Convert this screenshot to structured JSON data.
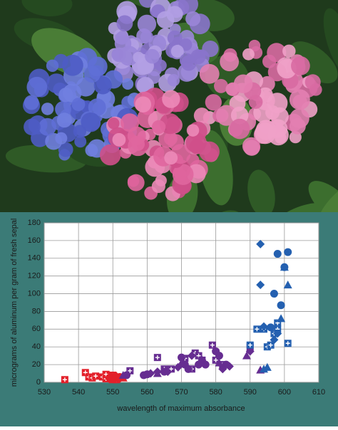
{
  "chart_data": {
    "type": "scatter",
    "x_label": "wavelength of maximum absorbance",
    "y_label": "micrograms of aluminum per gram of fresh sepal",
    "xlim": [
      530,
      610
    ],
    "xticks": [
      530,
      540,
      550,
      560,
      570,
      580,
      590,
      600,
      610
    ],
    "ylim": [
      0,
      180
    ],
    "yticks": [
      0,
      20,
      40,
      60,
      80,
      100,
      120,
      140,
      160,
      180
    ],
    "grid": true,
    "series": [
      {
        "color": "#e3202a",
        "marker": "square",
        "x": [
          536,
          542,
          543,
          544,
          545,
          547,
          548,
          548,
          550,
          551
        ],
        "values": [
          3,
          11,
          6,
          5,
          7,
          6,
          4,
          9,
          8,
          3
        ]
      },
      {
        "color": "#e3202a",
        "marker": "circle",
        "x": [
          549,
          550,
          551,
          552
        ],
        "values": [
          5,
          6,
          5,
          6
        ]
      },
      {
        "color": "#e3202a",
        "marker": "diamond",
        "x": [
          549,
          551,
          552,
          553
        ],
        "values": [
          4,
          7,
          4,
          6
        ]
      },
      {
        "color": "#e3202a",
        "marker": "triangle",
        "x": [
          550,
          553
        ],
        "values": [
          3,
          5
        ]
      },
      {
        "color": "#662d91",
        "marker": "square",
        "x": [
          555,
          563,
          565,
          567,
          571,
          573,
          574,
          575,
          576,
          579,
          580,
          582,
          590
        ],
        "values": [
          13,
          28,
          15,
          15,
          27,
          15,
          33,
          30,
          25,
          42,
          25,
          20,
          40
        ]
      },
      {
        "color": "#662d91",
        "marker": "circle",
        "x": [
          554,
          559,
          560,
          565,
          570,
          571,
          572,
          575,
          577,
          580,
          581,
          583
        ],
        "values": [
          8,
          8,
          9,
          12,
          28,
          20,
          15,
          20,
          20,
          35,
          30,
          20
        ]
      },
      {
        "color": "#662d91",
        "marker": "diamond",
        "x": [
          561,
          563,
          566,
          569,
          573,
          576,
          582,
          584,
          590
        ],
        "values": [
          10,
          12,
          12,
          17,
          30,
          25,
          15,
          18,
          35
        ]
      },
      {
        "color": "#662d91",
        "marker": "triangle",
        "x": [
          553,
          563,
          570,
          581,
          589,
          593
        ],
        "values": [
          8,
          10,
          22,
          22,
          30,
          14
        ]
      },
      {
        "color": "#2460b0",
        "marker": "square",
        "x": [
          590,
          592,
          594,
          595,
          596,
          597,
          598,
          598,
          601
        ],
        "values": [
          42,
          60,
          60,
          40,
          42,
          55,
          60,
          67,
          44
        ]
      },
      {
        "color": "#2460b0",
        "marker": "circle",
        "x": [
          596,
          597,
          598,
          599,
          600,
          601
        ],
        "values": [
          62,
          100,
          145,
          87,
          130,
          147
        ]
      },
      {
        "color": "#2460b0",
        "marker": "diamond",
        "x": [
          593,
          593,
          594,
          597,
          598
        ],
        "values": [
          156,
          110,
          63,
          48,
          55
        ]
      },
      {
        "color": "#2460b0",
        "marker": "triangle",
        "x": [
          594,
          595,
          599,
          600,
          601
        ],
        "values": [
          15,
          17,
          72,
          130,
          110
        ]
      }
    ]
  }
}
